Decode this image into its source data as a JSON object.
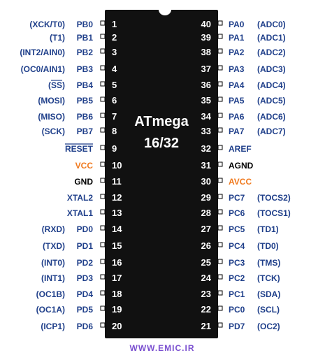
{
  "chip": {
    "title_line1": "ATmega",
    "title_line2": "16/32",
    "body_color": "#111111"
  },
  "watermark": {
    "text": "WWW.EMIC.IR",
    "color": "#7a4fd0"
  },
  "colors": {
    "label": "#1f3f8a",
    "power": "#f07a1f",
    "black": "#000000"
  },
  "left_pins": [
    {
      "num": "1",
      "name": "PB0",
      "alt": "(XCK/T0)"
    },
    {
      "num": "2",
      "name": "PB1",
      "alt": "(T1)"
    },
    {
      "num": "3",
      "name": "PB2",
      "alt": "(INT2/AIN0)"
    },
    {
      "num": "4",
      "name": "PB3",
      "alt": "(OC0/AIN1)"
    },
    {
      "num": "5",
      "name": "PB4",
      "alt": "(SS)",
      "alt_overline": true
    },
    {
      "num": "6",
      "name": "PB5",
      "alt": "(MOSI)"
    },
    {
      "num": "7",
      "name": "PB6",
      "alt": "(MISO)"
    },
    {
      "num": "8",
      "name": "PB7",
      "alt": "(SCK)"
    },
    {
      "num": "9",
      "name": "RESET",
      "alt": "",
      "overline": true
    },
    {
      "num": "10",
      "name": "VCC",
      "alt": "",
      "power": true
    },
    {
      "num": "11",
      "name": "GND",
      "alt": "",
      "black": true
    },
    {
      "num": "12",
      "name": "XTAL2",
      "alt": ""
    },
    {
      "num": "13",
      "name": "XTAL1",
      "alt": ""
    },
    {
      "num": "14",
      "name": "PD0",
      "alt": "(RXD)"
    },
    {
      "num": "15",
      "name": "PD1",
      "alt": "(TXD)"
    },
    {
      "num": "16",
      "name": "PD2",
      "alt": "(INT0)"
    },
    {
      "num": "17",
      "name": "PD3",
      "alt": "(INT1)"
    },
    {
      "num": "18",
      "name": "PD4",
      "alt": "(OC1B)"
    },
    {
      "num": "19",
      "name": "PD5",
      "alt": "(OC1A)"
    },
    {
      "num": "20",
      "name": "PD6",
      "alt": "(ICP1)"
    }
  ],
  "right_pins": [
    {
      "num": "40",
      "name": "PA0",
      "alt": "(ADC0)"
    },
    {
      "num": "39",
      "name": "PA1",
      "alt": "(ADC1)"
    },
    {
      "num": "38",
      "name": "PA2",
      "alt": "(ADC2)"
    },
    {
      "num": "37",
      "name": "PA3",
      "alt": "(ADC3)"
    },
    {
      "num": "36",
      "name": "PA4",
      "alt": "(ADC4)"
    },
    {
      "num": "35",
      "name": "PA5",
      "alt": "(ADC5)"
    },
    {
      "num": "34",
      "name": "PA6",
      "alt": "(ADC6)"
    },
    {
      "num": "33",
      "name": "PA7",
      "alt": "(ADC7)"
    },
    {
      "num": "32",
      "name": "AREF",
      "alt": ""
    },
    {
      "num": "31",
      "name": "AGND",
      "alt": "",
      "black": true
    },
    {
      "num": "30",
      "name": "AVCC",
      "alt": "",
      "power": true
    },
    {
      "num": "29",
      "name": "PC7",
      "alt": "(TOCS2)"
    },
    {
      "num": "28",
      "name": "PC6",
      "alt": "(TOCS1)"
    },
    {
      "num": "27",
      "name": "PC5",
      "alt": "(TD1)"
    },
    {
      "num": "26",
      "name": "PC4",
      "alt": "(TD0)"
    },
    {
      "num": "25",
      "name": "PC3",
      "alt": "(TMS)"
    },
    {
      "num": "24",
      "name": "PC2",
      "alt": "(TCK)"
    },
    {
      "num": "23",
      "name": "PC1",
      "alt": "(SDA)"
    },
    {
      "num": "22",
      "name": "PC0",
      "alt": "(SCL)"
    },
    {
      "num": "21",
      "name": "PD7",
      "alt": "(OC2)"
    }
  ]
}
